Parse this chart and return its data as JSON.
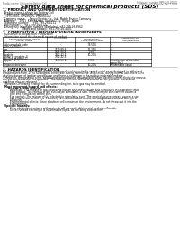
{
  "bg_color": "#ffffff",
  "header_left": "Product name: Lithium Ion Battery Cell",
  "header_right_line1": "Substance number: MPS-041-00010",
  "header_right_line2": "Established / Revision: Dec.7.2009",
  "title": "Safety data sheet for chemical products (SDS)",
  "section1_title": "1. PRODUCT AND COMPANY IDENTIFICATION",
  "section1_items": [
    "  Product name: Lithium Ion Battery Cell",
    "  Product code: Cylindrical-type cell",
    "    (IFR18650, IFR18650L, IFR18650A)",
    "  Company name:     Sanyo Electric Co., Ltd., Mobile Energy Company",
    "  Address:     2001  Kamikazaan, Sumoto-City, Hyogo, Japan",
    "  Telephone number:     +81-799-26-4111",
    "  Fax number:     +81-799-26-4121",
    "  Emergency telephone number (Weekday): +81-799-26-3962",
    "                         (Night and holiday): +81-799-26-4101"
  ],
  "section2_title": "2. COMPOSITON / INFORMATION ON INGREDIENTS",
  "section2_sub": "  Substance or preparation: Preparation",
  "section2_sub2": "  Information about the chemical nature of product",
  "table_col_header_row1": [
    "Component/chemical name1",
    "CAS number",
    "Concentration /",
    "Classification and"
  ],
  "table_col_header_row2": [
    "Several names",
    "",
    "Concentration range",
    "hazard labeling"
  ],
  "table_col_header_row3": [
    "",
    "",
    "(30-50%)",
    ""
  ],
  "table_rows": [
    [
      "Lithium cobalt oxide",
      "-",
      "30-50%",
      "-"
    ],
    [
      "(LiMn-Co-PbO3)",
      "",
      "",
      ""
    ],
    [
      "Iron",
      "7439-89-6",
      "15-25%",
      "-"
    ],
    [
      "Aluminum",
      "7429-90-5",
      "2-6%",
      "-"
    ],
    [
      "Graphite",
      "7782-42-5",
      "10-20%",
      "-"
    ],
    [
      "(Flake or graphite-1)",
      "7782-42-5",
      "",
      ""
    ],
    [
      "(Air-flow graphite-1)",
      "",
      "",
      ""
    ],
    [
      "Copper",
      "7440-50-8",
      "5-15%",
      "Sensitization of the skin"
    ],
    [
      "",
      "",
      "",
      "group No.2"
    ],
    [
      "Organic electrolyte",
      "-",
      "10-20%",
      "Inflammable liquid"
    ]
  ],
  "section3_title": "3. HAZARDS IDENTIFICATION",
  "section3_lines": [
    "For the battery cell, chemical materials are stored in a hermetically sealed metal case, designed to withstand",
    "temperatures from -20 to 60 degrees centigrade during normal use. As a result, during normal use, there is no",
    "physical danger of ignition or explosion and there is no danger of hazardous materials leakage.",
    "   However, if exposed to a fire, added mechanical shocks, decomposed, when electric current electricity misuse,",
    "the gas maybe vented (or operated). The battery cell case will be breached at this patterns, hazardous",
    "materials may be released.",
    "   Moreover, if heated strongly by the surrounding fire, toxic gas may be emitted."
  ],
  "section3_bullet1": "  Most important hazard and effects:",
  "section3_human": "      Human health effects:",
  "section3_human_lines": [
    "         Inhalation: The release of the electrolyte has an anesthesia action and stimulates in respiratory tract.",
    "         Skin contact: The release of the electrolyte stimulates a skin. The electrolyte skin contact causes a",
    "         sore and stimulation on the skin.",
    "         Eye contact: The release of the electrolyte stimulates eyes. The electrolyte eye contact causes a sore",
    "         and stimulation on the eye. Especially, a substance that causes a strong inflammation of the eye is",
    "         contained.",
    "         Environmental effects: Since a battery cell remains in the environment, do not throw out it into the",
    "         environment."
  ],
  "section3_bullet2": "  Specific hazards:",
  "section3_specific_lines": [
    "         If the electrolyte contacts with water, it will generate detrimental hydrogen fluoride.",
    "         Since the lead electrolyte is inflammable liquid, do not bring close to fire."
  ]
}
